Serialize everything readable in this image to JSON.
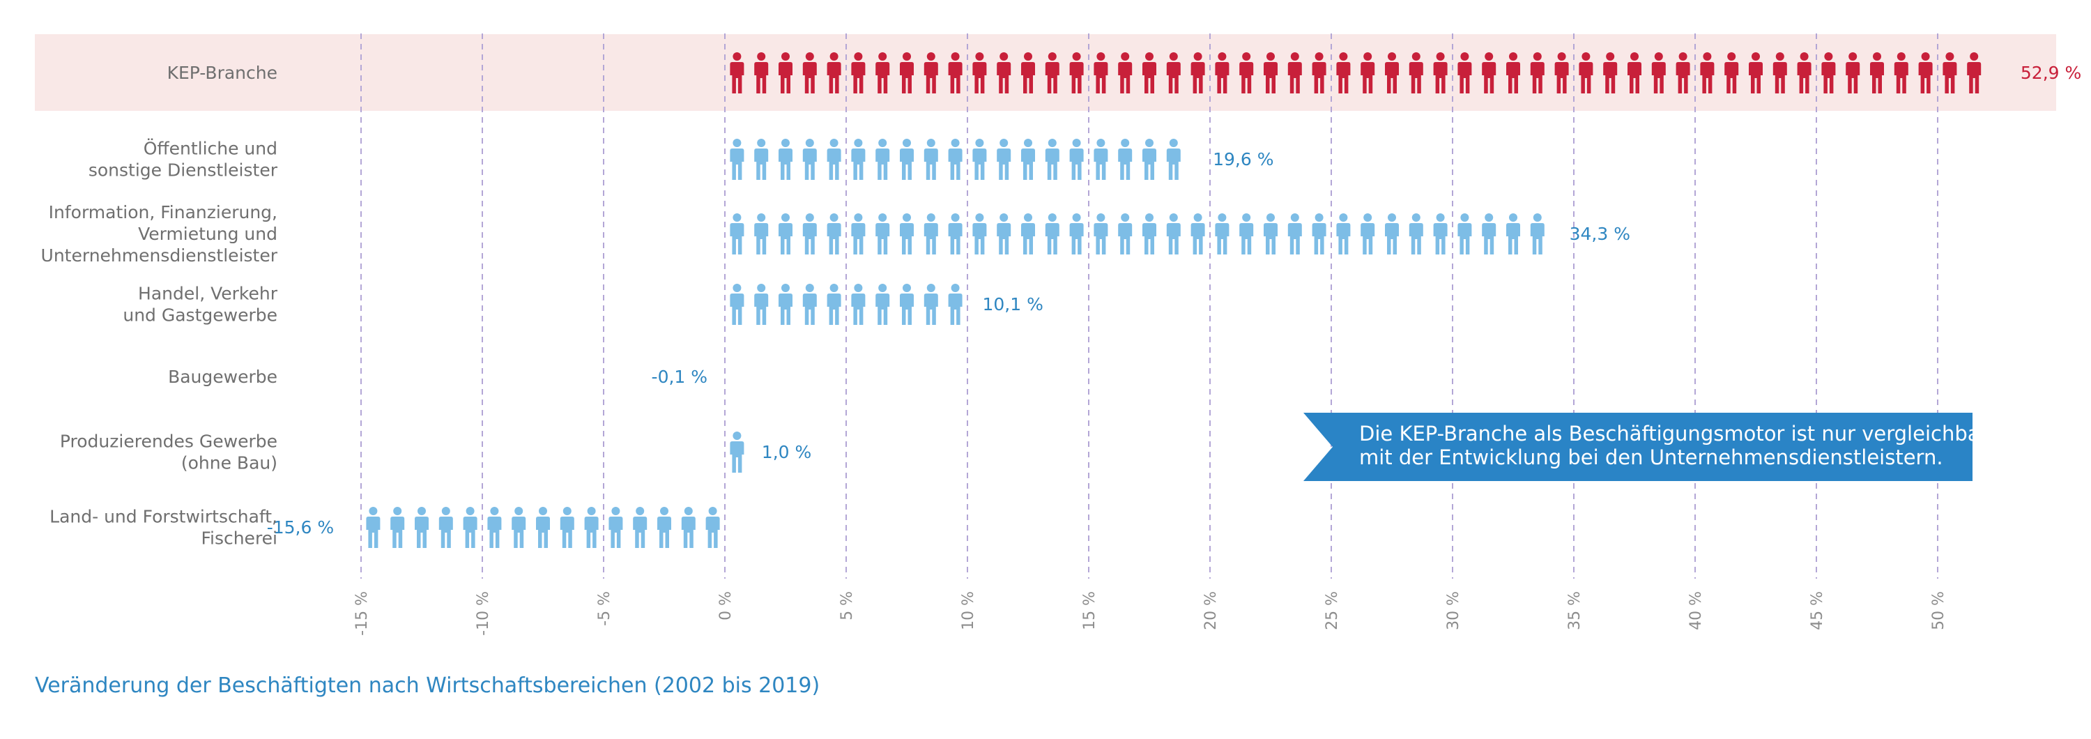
{
  "chart_data": {
    "type": "bar",
    "title": "Veränderung der Beschäftigten nach Wirtschaftsbereichen (2002 bis 2019)",
    "xlabel": "",
    "ylabel": "",
    "xlim": [
      -15,
      52.9
    ],
    "grid": true,
    "ticks": [
      -15,
      -10,
      -5,
      0,
      5,
      10,
      15,
      20,
      25,
      30,
      35,
      40,
      45,
      50
    ],
    "tick_labels": [
      "-15 %",
      "-10 %",
      "-5 %",
      "0 %",
      "5 %",
      "10 %",
      "15 %",
      "20 %",
      "25 %",
      "30 %",
      "35 %",
      "40 %",
      "45 %",
      "50 %"
    ],
    "categories": [
      {
        "label": [
          "KEP-Branche"
        ],
        "value": 52.9,
        "value_label": "52,9 %",
        "highlight": true
      },
      {
        "label": [
          "Öffentliche und",
          "sonstige Dienstleister"
        ],
        "value": 19.6,
        "value_label": "19,6 %",
        "highlight": false
      },
      {
        "label": [
          "Information, Finanzierung,",
          "Vermietung und",
          "Unternehmensdienstleister"
        ],
        "value": 34.3,
        "value_label": "34,3 %",
        "highlight": false
      },
      {
        "label": [
          "Handel, Verkehr",
          "und Gastgewerbe"
        ],
        "value": 10.1,
        "value_label": "10,1 %",
        "highlight": false
      },
      {
        "label": [
          "Baugewerbe"
        ],
        "value": -0.1,
        "value_label": "-0,1 %",
        "highlight": false
      },
      {
        "label": [
          "Produzierendes Gewerbe",
          "(ohne Bau)"
        ],
        "value": 1.0,
        "value_label": "1,0 %",
        "highlight": false
      },
      {
        "label": [
          "Land- und Forstwirtschaft,",
          "Fischerei"
        ],
        "value": -15.6,
        "value_label": "-15,6 %",
        "highlight": false
      }
    ],
    "annotation": [
      "Die KEP-Branche als Beschäftigungsmotor ist nur vergleichbar",
      "mit der Entwicklung bei den Unternehmensdienstleistern."
    ]
  },
  "colors": {
    "highlight": "#c8203a",
    "highlight_band": "#f9e8e7",
    "normal": "#2e86c1",
    "icon_normal": "#7dbde6",
    "grid": "#b3a6d6",
    "callout": "#2a84c6"
  }
}
